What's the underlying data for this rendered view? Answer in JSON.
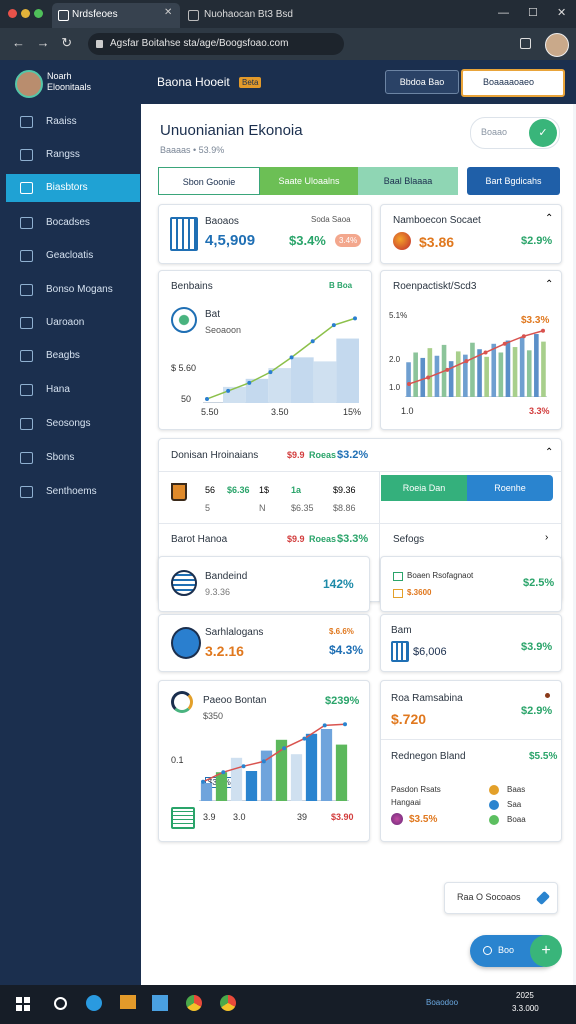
{
  "browser": {
    "tabs": [
      "Nrdsfeoes",
      "Nuohaocan Bt3 Bsd"
    ],
    "url": "Agsfar Boitahse sta/age/Boogsfoao.com"
  },
  "sidebar": {
    "profile": [
      "Noarh",
      "Eloonitaals"
    ],
    "active": 2,
    "items": [
      "Raaiss",
      "Rangss",
      "Biasbtors",
      "Bocadses",
      "Geacloatis",
      "Bonso Mogans",
      "Uaroaon",
      "Beagbs",
      "Hana",
      "Seosongs",
      "Sbons",
      "Senthoems"
    ]
  },
  "header": {
    "title": "Baona Hooeit",
    "badge": "Beta",
    "buttons": [
      "Bbdoa Bao",
      "Boaaaaoaeo"
    ]
  },
  "page": {
    "title": "Unuonianian Ekonoia",
    "subtitle": "Baaaas  •  53.9%",
    "search": "Boaao",
    "tabs": [
      "Sbon Goonie",
      "Saate Uloaalns",
      "Baal Blaaaa",
      "Bart Bgdicahs"
    ]
  },
  "stats": [
    {
      "label": "Baoaos",
      "value": "4,5,909",
      "change": "$3.4%",
      "side": "Soda Saoa",
      "badge": "3.4%"
    },
    {
      "label": "Namboecon Socaet",
      "value": "$3.86",
      "change": "$2.9%"
    }
  ],
  "charts": {
    "growth": {
      "title": "Benbains",
      "badge": "B  Boa",
      "legend": [
        "Bat",
        "Seoaoon"
      ],
      "ylabels": [
        "$ 5.60",
        "50"
      ],
      "xlabels": [
        "5.50",
        "3.50",
        "15%"
      ],
      "ylim": [
        0,
        7
      ],
      "bars": [
        1.2,
        1.8,
        2.6,
        3.4,
        3.1,
        4.8
      ],
      "line": [
        0.3,
        0.9,
        1.5,
        2.3,
        3.4,
        4.6,
        5.8,
        6.3
      ]
    },
    "activity": {
      "title": "Roenpactiskt/Scd3",
      "corner": "$3.3%",
      "ylabels": [
        "5.1%",
        "2.0",
        "1.0"
      ],
      "xlabels": [
        "1.0",
        "3.3%"
      ],
      "ylim": [
        0,
        7
      ],
      "bars": [
        3.2,
        4.1,
        3.6,
        4.5,
        3.8,
        4.8,
        3.3,
        4.2,
        3.9,
        5.0,
        4.4,
        3.7,
        4.9,
        4.1,
        5.2,
        4.6,
        5.5,
        4.3,
        5.8,
        5.1
      ],
      "line": [
        1.2,
        1.8,
        2.5,
        3.3,
        4.1,
        4.9,
        5.6,
        6.1
      ]
    },
    "revenue": {
      "title": "Paeoo Bontan",
      "sub": "$350",
      "corner": "$239%",
      "ylabels": [
        "0.1"
      ],
      "tag": "$3.5%",
      "xlabels": [
        "3.9",
        "3.0",
        "39",
        "$3.90"
      ],
      "ylim": [
        0,
        7
      ],
      "bars": [
        1.5,
        2.4,
        3.6,
        2.5,
        4.2,
        5.1,
        3.9,
        5.6,
        6.0,
        4.7
      ],
      "line": [
        1.6,
        2.4,
        2.9,
        3.3,
        4.4,
        5.2,
        6.3,
        6.4
      ]
    }
  },
  "sections": {
    "donations": {
      "title": "Donisan Hroinaians",
      "tags": [
        "$9.9",
        "Roeas",
        "$3.2%"
      ],
      "row1": [
        "56",
        "$6.36",
        "1$",
        "1a",
        "$9.36"
      ],
      "row2": [
        "5",
        "N",
        "$6.35",
        "$8.86"
      ],
      "buttons": [
        "Roeia Dan",
        "Roenhe"
      ]
    },
    "barot": {
      "title": "Barot Hanoa",
      "tags": [
        "$9.9",
        "Roeas",
        "$3.3%"
      ],
      "side": "Sefogs"
    },
    "cards": [
      {
        "label": "Bandeind",
        "sub": "9.3.36",
        "value": "142%"
      },
      {
        "rows": [
          "Boaen Rsofagnaot",
          "$.3600"
        ],
        "value": "$2.5%"
      },
      {
        "label": "Sarhlalogans",
        "value": "3.2.16",
        "change": "$4.3%",
        "corner": "$.6.6%"
      },
      {
        "label": "Bam",
        "value": "$6,006",
        "change": "$3.9%"
      }
    ],
    "summary": {
      "title": "Roa Ramsabina",
      "value": "$.720",
      "change": "$2.9%",
      "row": "Rednegon Bland",
      "rowValue": "$5.5%",
      "label": [
        "Pasdon Rsats",
        "Hangaai"
      ],
      "bottom": "$3.5%",
      "legend": [
        "Baas",
        "Saa",
        "Boaa"
      ]
    }
  },
  "actions": {
    "share": "Raa O Socoaos",
    "fab": "Boo"
  },
  "taskbar": {
    "tray": "Boaodoo",
    "clock": [
      "2025",
      "3.3.000"
    ]
  }
}
